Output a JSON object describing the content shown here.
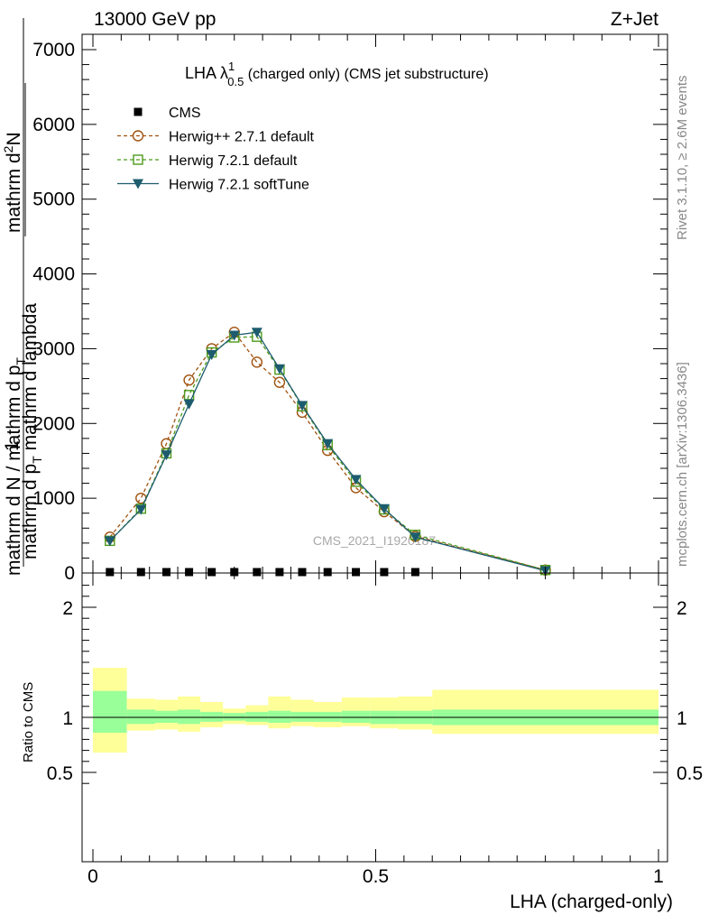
{
  "header": {
    "left": "13000 GeV pp",
    "right": "Z+Jet"
  },
  "side": {
    "rivet": "Rivet 3.1.10, ≥ 2.6M events",
    "mcplots": "mcplots.cern.ch [arXiv:1306.3436]"
  },
  "watermark": "CMS_2021_I1920187",
  "chart_data": {
    "type": "line",
    "title": {
      "main": "LHA λ",
      "sup": "1",
      "sub": "0.5",
      "rest": " (charged only) (CMS jet substructure)"
    },
    "ylabel": "1 / mathrm d N / mathrm d p_T mathrm d p_T mathrm d lambda · mathrm d²N",
    "ylabel_parts": {
      "prefix": "1",
      "denominator": "mathrm d N / mathrm d p",
      "denominator_sub": "T",
      "numerator": "mathrm d",
      "numerator_sup": "2",
      "numerator_rest": "N",
      "fraction_denominator": "mathrm d p",
      "fraction_denominator_sub": "T",
      "fraction_denominator_rest": " mathrm d lambda"
    },
    "ratio_ylabel": "Ratio to CMS",
    "xlabel": "LHA (charged-only)",
    "xlim": [
      0,
      1
    ],
    "ylim": [
      0,
      7000
    ],
    "ratio_ylim": [
      0.35,
      2.3
    ],
    "x_ticks": [
      0,
      0.5,
      1
    ],
    "x_tick_labels": [
      "0",
      "0.5",
      "1"
    ],
    "y_ticks": [
      1000,
      2000,
      3000,
      4000,
      5000,
      6000,
      7000
    ],
    "y_tick_labels": [
      "1000",
      "2000",
      "3000",
      "4000",
      "5000",
      "6000",
      "7000"
    ],
    "y_zero_label": "0",
    "ratio_ticks": [
      0.5,
      1,
      2
    ],
    "ratio_tick_labels": [
      "0.5",
      "1",
      "2"
    ],
    "legend_position": "top-left",
    "series": [
      {
        "name": "CMS",
        "marker": "square-filled",
        "color": "#000000",
        "x": [
          0.03,
          0.085,
          0.13,
          0.17,
          0.21,
          0.25,
          0.29,
          0.33,
          0.37,
          0.415,
          0.465,
          0.515,
          0.57
        ],
        "y": [
          0,
          0,
          0,
          0,
          0,
          0,
          0,
          0,
          0,
          0,
          0,
          0,
          0
        ]
      },
      {
        "name": "Herwig++ 2.7.1 default",
        "marker": "circle-open",
        "color": "#a0520f",
        "x": [
          0.03,
          0.085,
          0.13,
          0.17,
          0.21,
          0.25,
          0.29,
          0.33,
          0.37,
          0.415,
          0.465,
          0.515,
          0.57,
          0.8
        ],
        "y": [
          480,
          1000,
          1730,
          2580,
          3000,
          3220,
          2820,
          2550,
          2150,
          1640,
          1140,
          820,
          490,
          40
        ]
      },
      {
        "name": "Herwig 7.2.1 default",
        "marker": "square-open",
        "color": "#4c9a1c",
        "x": [
          0.03,
          0.085,
          0.13,
          0.17,
          0.21,
          0.25,
          0.29,
          0.33,
          0.37,
          0.415,
          0.465,
          0.515,
          0.57,
          0.8
        ],
        "y": [
          430,
          860,
          1600,
          2380,
          2950,
          3150,
          3160,
          2720,
          2230,
          1710,
          1220,
          850,
          510,
          40
        ]
      },
      {
        "name": "Herwig 7.2.1 softTune",
        "marker": "triangle-down-filled",
        "color": "#1d5c6e",
        "x": [
          0.03,
          0.085,
          0.13,
          0.17,
          0.21,
          0.25,
          0.29,
          0.33,
          0.37,
          0.415,
          0.465,
          0.515,
          0.57,
          0.8
        ],
        "y": [
          430,
          850,
          1580,
          2260,
          2920,
          3180,
          3220,
          2730,
          2240,
          1730,
          1250,
          860,
          480,
          30
        ]
      }
    ],
    "ratio_bands": {
      "bin_edges": [
        0,
        0.06,
        0.11,
        0.15,
        0.19,
        0.23,
        0.27,
        0.31,
        0.35,
        0.39,
        0.44,
        0.49,
        0.54,
        0.6,
        1.0
      ],
      "inner_low": [
        0.86,
        0.94,
        0.95,
        0.94,
        0.96,
        0.97,
        0.96,
        0.95,
        0.96,
        0.96,
        0.95,
        0.94,
        0.94,
        0.93
      ],
      "inner_high": [
        1.24,
        1.07,
        1.06,
        1.07,
        1.05,
        1.04,
        1.05,
        1.06,
        1.05,
        1.05,
        1.06,
        1.06,
        1.06,
        1.07
      ],
      "outer_low": [
        0.68,
        0.88,
        0.89,
        0.87,
        0.91,
        0.94,
        0.93,
        0.9,
        0.92,
        0.91,
        0.92,
        0.9,
        0.89,
        0.85
      ],
      "outer_high": [
        1.45,
        1.17,
        1.16,
        1.19,
        1.14,
        1.08,
        1.11,
        1.19,
        1.16,
        1.14,
        1.18,
        1.18,
        1.19,
        1.25
      ],
      "inner_color": "#99ff99",
      "outer_color": "#ffff99"
    }
  }
}
